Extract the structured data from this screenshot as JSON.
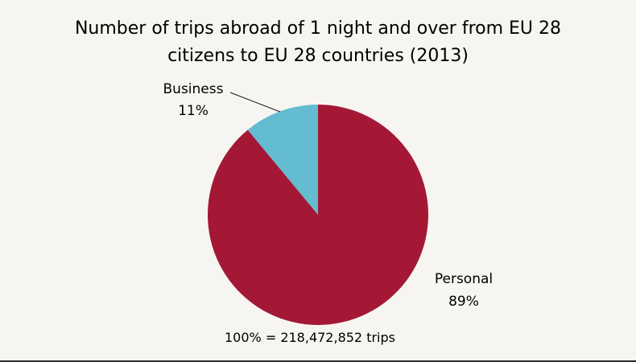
{
  "chart_data": {
    "type": "pie",
    "title": [
      "Number of trips abroad of 1 night and over from EU 28",
      "citizens to EU 28 countries (2013)"
    ],
    "slices": [
      {
        "label": "Business",
        "value": 11,
        "value_label": "11%",
        "color": "#63bccf"
      },
      {
        "label": "Personal",
        "value": 89,
        "value_label": "89%",
        "color": "#a41836"
      }
    ],
    "total_note": "100% = 218,472,852 trips"
  }
}
